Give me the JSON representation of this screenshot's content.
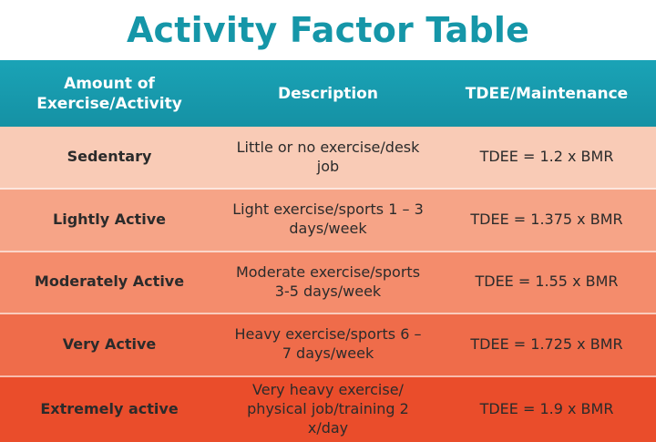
{
  "title": "Activity Factor Table",
  "headers": {
    "amount": "Amount of\nExercise/Activity",
    "description": "Description",
    "tdee": "TDEE/Maintenance"
  },
  "rows": [
    {
      "level": "Sedentary",
      "description": "Little or no exercise/desk job",
      "formula": "TDEE = 1.2 x BMR"
    },
    {
      "level": "Lightly Active",
      "description": "Light exercise/sports 1 – 3 days/week",
      "formula": "TDEE = 1.375 x BMR"
    },
    {
      "level": "Moderately Active",
      "description": "Moderate exercise/sports 3-5 days/week",
      "formula": "TDEE = 1.55 x BMR"
    },
    {
      "level": "Very Active",
      "description": "Heavy exercise/sports 6 – 7 days/week",
      "formula": "TDEE = 1.725 x BMR"
    },
    {
      "level": "Extremely active",
      "description": "Very heavy exercise/ physical job/training 2 x/day",
      "formula": "TDEE = 1.9 x BMR"
    }
  ],
  "colors": {
    "title": "#1596a8",
    "header_bg": "#1a9db0",
    "row_1": "#f9cbb6",
    "row_2": "#f6a487",
    "row_3": "#f48c6c",
    "row_4": "#ef6c4a",
    "row_5": "#ea4d2b"
  }
}
